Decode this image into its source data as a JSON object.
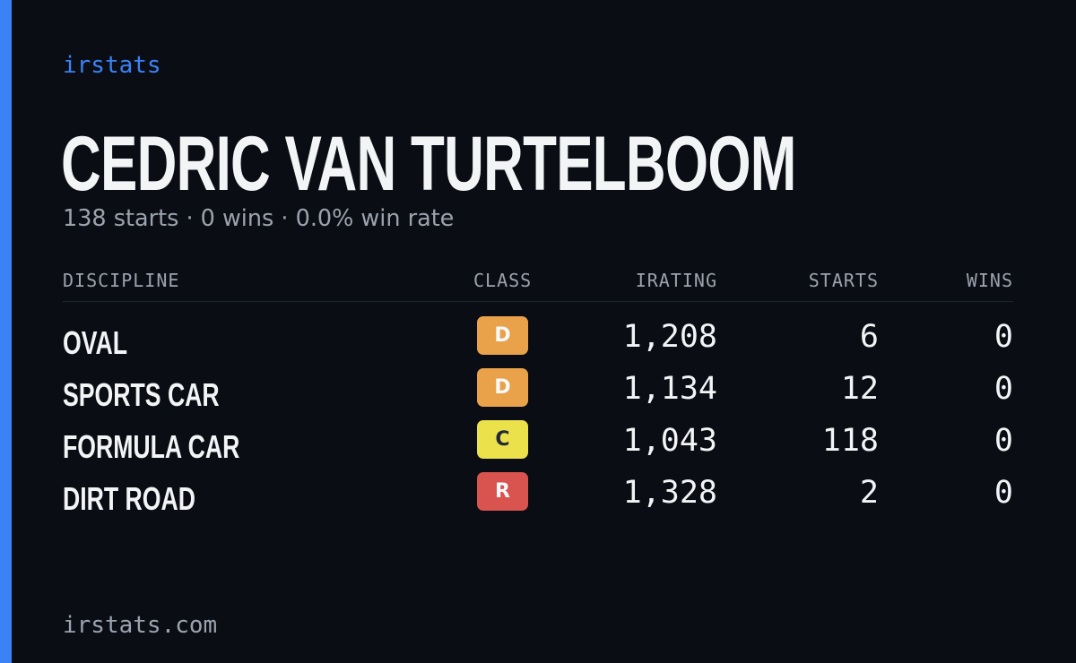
{
  "brand": "irstats",
  "driver": {
    "name": "CEDRIC VAN TURTELBOOM",
    "summary": "138 starts · 0 wins · 0.0% win rate"
  },
  "table": {
    "headers": {
      "discipline": "DISCIPLINE",
      "class": "CLASS",
      "irating": "IRATING",
      "starts": "STARTS",
      "wins": "WINS"
    },
    "rows": [
      {
        "discipline": "OVAL",
        "class": "D",
        "class_color": "#e9a24a",
        "irating": "1,208",
        "starts": "6",
        "wins": "0"
      },
      {
        "discipline": "SPORTS CAR",
        "class": "D",
        "class_color": "#e9a24a",
        "irating": "1,134",
        "starts": "12",
        "wins": "0"
      },
      {
        "discipline": "FORMULA CAR",
        "class": "C",
        "class_color": "#ebe14a",
        "irating": "1,043",
        "starts": "118",
        "wins": "0"
      },
      {
        "discipline": "DIRT ROAD",
        "class": "R",
        "class_color": "#d9534f",
        "irating": "1,328",
        "starts": "2",
        "wins": "0"
      }
    ]
  },
  "footer": "irstats.com",
  "colors": {
    "background": "#0a0d14",
    "accent": "#3b82f6",
    "muted_text": "#9ca3af",
    "primary_text": "#f3f4f6"
  }
}
